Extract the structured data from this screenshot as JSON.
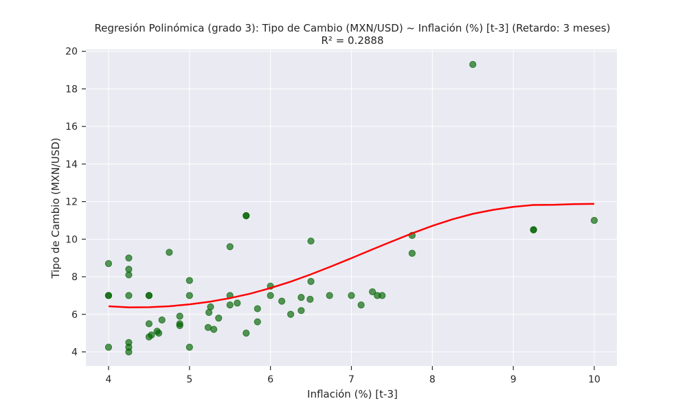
{
  "chart_data": {
    "type": "scatter",
    "title": "Regresión Polinómica (grado 3): Tipo de Cambio (MXN/USD) ~ Inflación (%) [t-3] (Retardo: 3 meses)",
    "subtitle": "R² = 0.2888",
    "xlabel": "Inflación (%) [t-3]",
    "ylabel": "Tipo de Cambio (MXN/USD)",
    "xlim": [
      3.72,
      10.28
    ],
    "ylim": [
      3.25,
      20.1
    ],
    "xticks": [
      4,
      5,
      6,
      7,
      8,
      9,
      10
    ],
    "yticks": [
      4,
      6,
      8,
      10,
      12,
      14,
      16,
      18,
      20
    ],
    "grid": true,
    "colors": {
      "points": "#006400",
      "fit": "#ff0000",
      "background": "#eaeaf2",
      "grid": "#ffffff"
    },
    "series": [
      {
        "type": "scatter",
        "points": [
          [
            4.0,
            8.7
          ],
          [
            4.0,
            7.0
          ],
          [
            4.0,
            7.0
          ],
          [
            4.0,
            4.25
          ],
          [
            4.25,
            9.0
          ],
          [
            4.25,
            8.4
          ],
          [
            4.25,
            8.1
          ],
          [
            4.25,
            7.0
          ],
          [
            4.25,
            4.5
          ],
          [
            4.25,
            4.25
          ],
          [
            4.25,
            4.0
          ],
          [
            4.5,
            7.0
          ],
          [
            4.5,
            7.0
          ],
          [
            4.5,
            5.5
          ],
          [
            4.5,
            4.8
          ],
          [
            4.53,
            4.9
          ],
          [
            4.6,
            5.1
          ],
          [
            4.62,
            5.0
          ],
          [
            4.66,
            5.7
          ],
          [
            4.75,
            9.3
          ],
          [
            4.88,
            5.4
          ],
          [
            4.88,
            5.5
          ],
          [
            4.88,
            5.9
          ],
          [
            5.0,
            7.8
          ],
          [
            5.0,
            7.0
          ],
          [
            5.0,
            4.25
          ],
          [
            5.23,
            5.3
          ],
          [
            5.24,
            6.1
          ],
          [
            5.26,
            6.4
          ],
          [
            5.3,
            5.2
          ],
          [
            5.36,
            5.8
          ],
          [
            5.5,
            9.6
          ],
          [
            5.5,
            7.0
          ],
          [
            5.5,
            6.5
          ],
          [
            5.59,
            6.6
          ],
          [
            5.7,
            11.25
          ],
          [
            5.7,
            11.25
          ],
          [
            5.7,
            5.0
          ],
          [
            5.84,
            6.3
          ],
          [
            5.84,
            5.6
          ],
          [
            6.0,
            7.5
          ],
          [
            6.0,
            7.0
          ],
          [
            6.14,
            6.7
          ],
          [
            6.25,
            6.0
          ],
          [
            6.38,
            6.9
          ],
          [
            6.38,
            6.2
          ],
          [
            6.49,
            6.8
          ],
          [
            6.5,
            9.9
          ],
          [
            6.5,
            7.75
          ],
          [
            6.73,
            7.0
          ],
          [
            7.0,
            7.0
          ],
          [
            7.12,
            6.5
          ],
          [
            7.26,
            7.2
          ],
          [
            7.32,
            7.0
          ],
          [
            7.38,
            7.0
          ],
          [
            7.75,
            10.2
          ],
          [
            7.75,
            9.25
          ],
          [
            8.5,
            19.3
          ],
          [
            9.25,
            10.5
          ],
          [
            9.25,
            10.5
          ],
          [
            10.0,
            11.0
          ]
        ]
      },
      {
        "type": "line",
        "points": [
          [
            4.0,
            6.43
          ],
          [
            4.25,
            6.37
          ],
          [
            4.5,
            6.38
          ],
          [
            4.75,
            6.43
          ],
          [
            5.0,
            6.53
          ],
          [
            5.25,
            6.67
          ],
          [
            5.5,
            6.86
          ],
          [
            5.75,
            7.1
          ],
          [
            6.0,
            7.4
          ],
          [
            6.25,
            7.74
          ],
          [
            6.5,
            8.13
          ],
          [
            6.75,
            8.55
          ],
          [
            7.0,
            8.99
          ],
          [
            7.25,
            9.44
          ],
          [
            7.5,
            9.88
          ],
          [
            7.75,
            10.31
          ],
          [
            8.0,
            10.71
          ],
          [
            8.25,
            11.06
          ],
          [
            8.5,
            11.35
          ],
          [
            8.75,
            11.56
          ],
          [
            9.0,
            11.72
          ],
          [
            9.25,
            11.82
          ],
          [
            9.5,
            11.83
          ],
          [
            9.75,
            11.87
          ],
          [
            10.0,
            11.88
          ]
        ]
      }
    ]
  }
}
